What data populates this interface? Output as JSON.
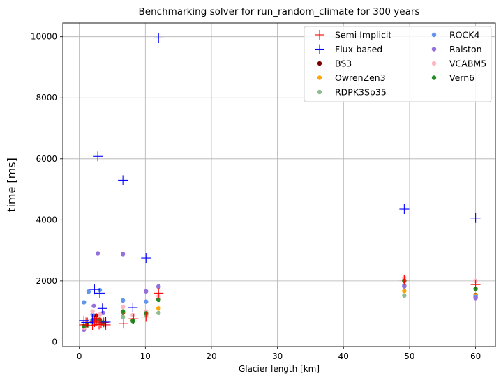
{
  "chart_data": {
    "type": "scatter",
    "title": "Benchmarking solver for run_random_climate for 300 years",
    "xlabel": "Glacier length [km]",
    "ylabel": "time [ms]",
    "xlim": [
      -2.5,
      63
    ],
    "ylim": [
      -150,
      10450
    ],
    "xticks": [
      0,
      10,
      20,
      30,
      40,
      50,
      60
    ],
    "yticks": [
      0,
      2000,
      4000,
      6000,
      8000,
      10000
    ],
    "grid": true,
    "legend_position": "top-right",
    "legend_columns": 2,
    "series": [
      {
        "name": "Semi Implicit",
        "marker": "plus",
        "color": "#ff0000",
        "x": [
          0.7,
          1.0,
          2.0,
          2.3,
          2.6,
          3.0,
          3.3,
          3.7,
          4.0,
          6.7,
          8.2,
          10.1,
          12.0,
          49.2,
          60.0
        ],
        "y": [
          560,
          640,
          540,
          650,
          780,
          570,
          600,
          640,
          560,
          600,
          760,
          820,
          1600,
          2030,
          1880
        ]
      },
      {
        "name": "Flux-based",
        "marker": "plus",
        "color": "#0000ff",
        "x": [
          0.7,
          1.2,
          2.0,
          2.3,
          2.8,
          3.1,
          3.5,
          4.0,
          6.6,
          8.1,
          10.1,
          12.0,
          49.2,
          60.0
        ],
        "y": [
          700,
          640,
          750,
          1720,
          6080,
          1600,
          1100,
          650,
          5300,
          1130,
          2750,
          9960,
          4350,
          4060
        ]
      },
      {
        "name": "BS3",
        "marker": "dot",
        "color": "#800000",
        "x": [
          0.7,
          1.2,
          2.0,
          2.5,
          3.1,
          3.6,
          6.6,
          8.1,
          10.1,
          12.0,
          49.2,
          60.0
        ],
        "y": [
          540,
          580,
          650,
          860,
          700,
          630,
          960,
          710,
          900,
          1400,
          2010,
          1540
        ]
      },
      {
        "name": "OwrenZen3",
        "marker": "dot",
        "color": "#ffa500",
        "x": [
          0.7,
          1.2,
          2.0,
          2.5,
          3.1,
          3.6,
          6.6,
          8.1,
          10.1,
          12.0,
          49.2,
          60.0
        ],
        "y": [
          500,
          560,
          620,
          750,
          680,
          610,
          990,
          700,
          910,
          1100,
          1670,
          1530
        ]
      },
      {
        "name": "RDPK3Sp35",
        "marker": "dot",
        "color": "#8fbc8f",
        "x": [
          0.7,
          1.2,
          2.0,
          2.5,
          3.1,
          3.6,
          6.6,
          8.1,
          10.1,
          12.0,
          49.2,
          60.0
        ],
        "y": [
          480,
          520,
          600,
          650,
          650,
          590,
          820,
          680,
          870,
          950,
          1520,
          1450
        ]
      },
      {
        "name": "ROCK4",
        "marker": "dot",
        "color": "#6495ed",
        "x": [
          0.7,
          1.4,
          2.0,
          3.1,
          6.6,
          10.1,
          12.0,
          49.2,
          60.0
        ],
        "y": [
          1300,
          1650,
          900,
          1700,
          1360,
          1320,
          1820,
          1850,
          1480
        ]
      },
      {
        "name": "Ralston",
        "marker": "dot",
        "color": "#9370db",
        "x": [
          0.7,
          2.2,
          2.8,
          3.6,
          6.6,
          10.1,
          12.0,
          49.2,
          60.0
        ],
        "y": [
          400,
          1180,
          2900,
          950,
          2880,
          1660,
          1810,
          1820,
          1440
        ]
      },
      {
        "name": "VCABM5",
        "marker": "dot",
        "color": "#ffb6c1",
        "x": [
          0.7,
          2.0,
          3.1,
          6.6,
          8.1,
          10.1,
          12.0,
          49.2,
          60.0
        ],
        "y": [
          460,
          1000,
          900,
          1150,
          880,
          1000,
          1500,
          2100,
          2000
        ]
      },
      {
        "name": "Vern6",
        "marker": "dot",
        "color": "#228b22",
        "x": [
          0.7,
          1.2,
          2.0,
          2.5,
          3.1,
          3.6,
          6.6,
          8.1,
          10.1,
          12.0,
          49.2,
          60.0
        ],
        "y": [
          520,
          560,
          700,
          720,
          730,
          640,
          1000,
          690,
          940,
          1380,
          2000,
          1740
        ]
      }
    ]
  }
}
